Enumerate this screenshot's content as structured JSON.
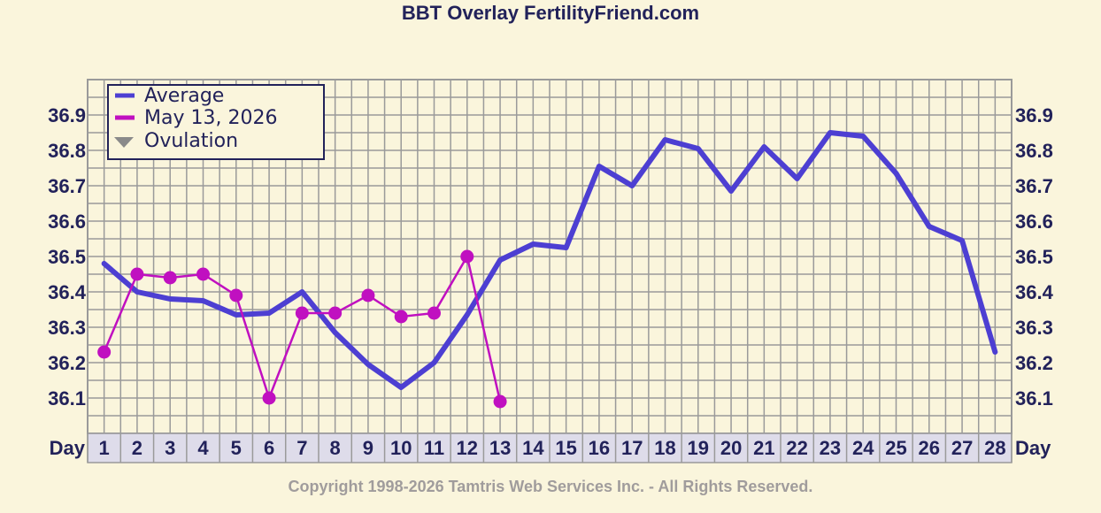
{
  "title": "BBT Overlay FertilityFriend.com",
  "footer": "Copyright 1998-2026 Tamtris Web Services Inc. - All Rights Reserved.",
  "colors": {
    "background": "#faf5dc",
    "grid": "#9a9a9a",
    "text": "#22225a",
    "average": "#4d3fd2",
    "cycle": "#c010c0",
    "ovulation": "#8a8a8a",
    "day_row_bg": "#dedcea"
  },
  "chart_data": {
    "type": "line",
    "title": "BBT Overlay FertilityFriend.com",
    "xlabel": "Day",
    "x_label_left": "Day",
    "x_label_right": "Day",
    "x": [
      1,
      2,
      3,
      4,
      5,
      6,
      7,
      8,
      9,
      10,
      11,
      12,
      13,
      14,
      15,
      16,
      17,
      18,
      19,
      20,
      21,
      22,
      23,
      24,
      25,
      26,
      27,
      28
    ],
    "ylim": [
      36.0,
      37.0
    ],
    "yticks": [
      "36.1",
      "36.2",
      "36.3",
      "36.4",
      "36.5",
      "36.6",
      "36.7",
      "36.8",
      "36.9"
    ],
    "grid": true,
    "legend_position": "top-left",
    "legend": [
      "Average",
      "May 13, 2026",
      "Ovulation"
    ],
    "series": [
      {
        "name": "Average",
        "color": "#4d3fd2",
        "x": [
          1,
          2,
          3,
          4,
          5,
          6,
          7,
          8,
          9,
          10,
          11,
          12,
          13,
          14,
          15,
          16,
          17,
          18,
          19,
          20,
          21,
          22,
          23,
          24,
          25,
          26,
          27,
          28
        ],
        "values": [
          36.48,
          36.4,
          36.38,
          36.375,
          36.335,
          36.34,
          36.4,
          36.285,
          36.195,
          36.13,
          36.2,
          36.335,
          36.49,
          36.535,
          36.525,
          36.755,
          36.7,
          36.83,
          36.805,
          36.685,
          36.81,
          36.72,
          36.85,
          36.84,
          36.735,
          36.585,
          36.545,
          36.23
        ]
      },
      {
        "name": "May 13, 2026",
        "color": "#c010c0",
        "x": [
          1,
          2,
          3,
          4,
          5,
          6,
          7,
          8,
          9,
          10,
          11,
          12,
          13
        ],
        "values": [
          36.23,
          36.45,
          36.44,
          36.45,
          36.39,
          36.1,
          36.34,
          36.34,
          36.39,
          36.33,
          36.34,
          36.5,
          36.09
        ]
      },
      {
        "name": "Ovulation",
        "color": "#8a8a8a",
        "x": [],
        "values": []
      }
    ]
  }
}
